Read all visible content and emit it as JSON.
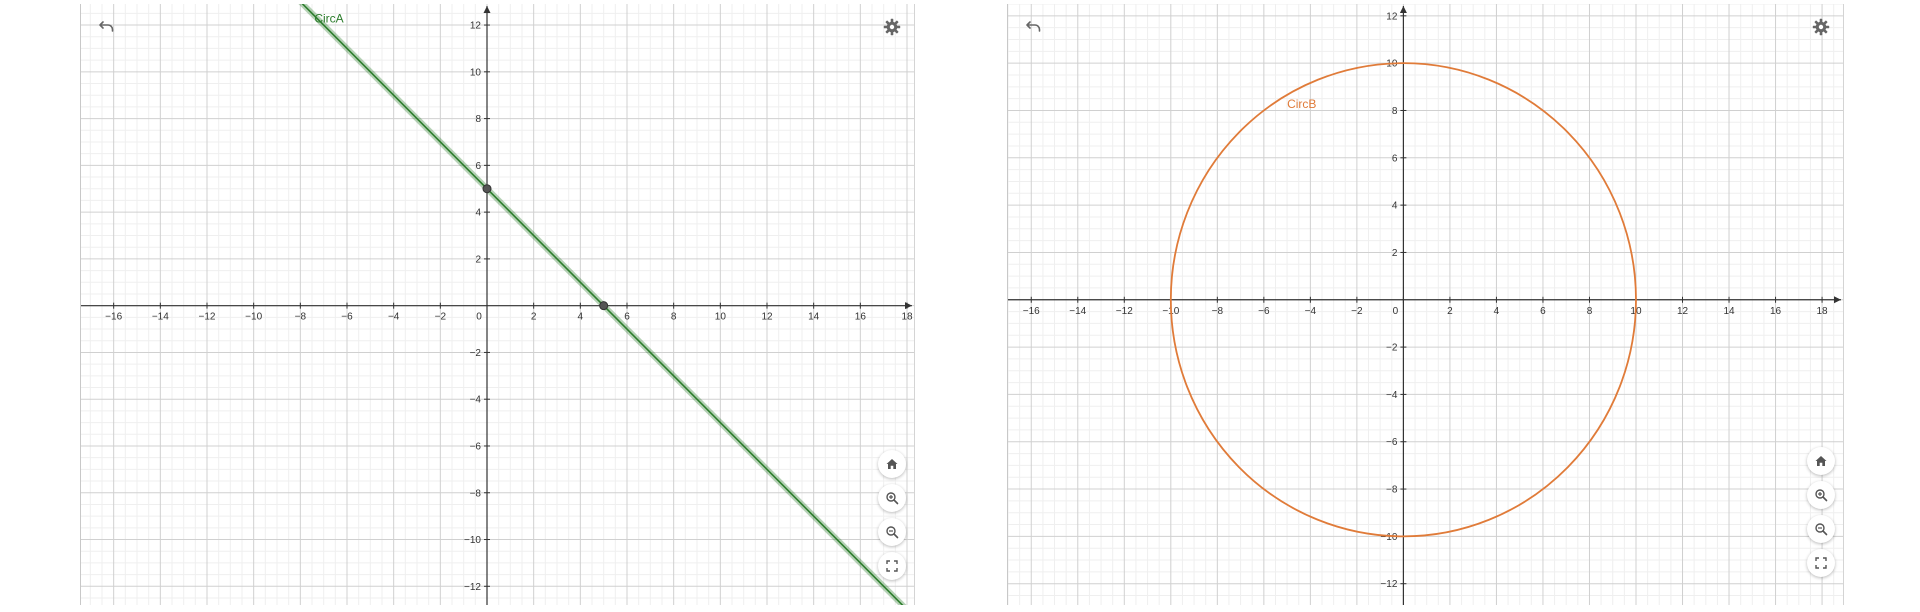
{
  "colors": {
    "grid_minor": "#efefef",
    "grid_major": "#d0d0d0",
    "axis": "#333333",
    "icon": "#666666"
  },
  "toolbar": {
    "undo_icon": "undo-icon",
    "settings_icon": "gear-icon",
    "home_icon": "home-icon",
    "zoom_in_icon": "zoom-in-icon",
    "zoom_out_icon": "zoom-out-icon",
    "fullscreen_icon": "fullscreen-icon"
  },
  "chart_data": [
    {
      "type": "line",
      "title": "",
      "xlabel": "",
      "ylabel": "",
      "xlim": [
        -17.4,
        18.3
      ],
      "ylim": [
        -12.8,
        12.9
      ],
      "grid": true,
      "x_ticks": [
        -16,
        -14,
        -12,
        -10,
        -8,
        -6,
        -4,
        -2,
        0,
        2,
        4,
        6,
        8,
        10,
        12,
        14,
        16,
        18
      ],
      "y_ticks": [
        -12,
        -10,
        -8,
        -6,
        -4,
        -2,
        2,
        4,
        6,
        8,
        10,
        12
      ],
      "series": [
        {
          "name": "CircA",
          "color": "#2d7d2d",
          "kind": "line",
          "x": [
            -8,
            18
          ],
          "y": [
            13,
            -13
          ]
        }
      ],
      "points": [
        {
          "x": 0,
          "y": 5
        },
        {
          "x": 5,
          "y": 0
        }
      ],
      "labels": [
        {
          "text": "CircA",
          "x": -7.4,
          "y": 12.1,
          "color": "#2d7d2d"
        }
      ]
    },
    {
      "type": "line",
      "title": "",
      "xlabel": "",
      "ylabel": "",
      "xlim": [
        -17.0,
        18.9
      ],
      "ylim": [
        -12.9,
        12.5
      ],
      "grid": true,
      "x_ticks": [
        -16,
        -14,
        -12,
        -10,
        -8,
        -6,
        -4,
        -2,
        0,
        2,
        4,
        6,
        8,
        10,
        12,
        14,
        16,
        18
      ],
      "y_ticks": [
        -12,
        -10,
        -8,
        -6,
        -4,
        -2,
        2,
        4,
        6,
        8,
        10,
        12
      ],
      "series": [
        {
          "name": "CircB",
          "color": "#e07b39",
          "kind": "circle",
          "center": [
            0,
            0
          ],
          "radius": 10
        }
      ],
      "points": [],
      "labels": [
        {
          "text": "CircB",
          "x": -5.0,
          "y": 8.1,
          "color": "#e07b39"
        }
      ]
    }
  ]
}
